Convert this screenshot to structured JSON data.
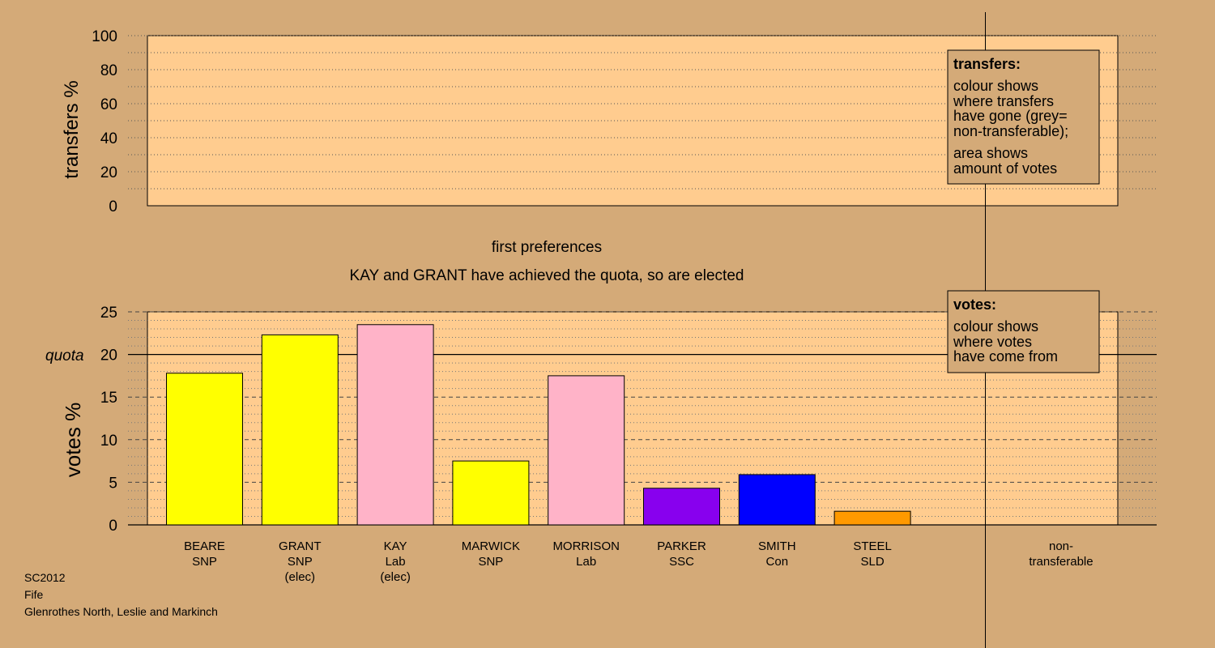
{
  "chart_data": [
    {
      "type": "bar",
      "panel": "transfers",
      "ylabel": "transfers %",
      "ylim": [
        0,
        100
      ],
      "yticks": [
        0,
        20,
        40,
        60,
        80,
        100
      ],
      "values": [],
      "legend": {
        "title": "transfers:",
        "lines": [
          "colour shows",
          "where transfers",
          "have gone (grey=",
          "non-transferable);"
        ],
        "lines2": [
          "area shows",
          "amount of votes"
        ]
      }
    },
    {
      "type": "bar",
      "panel": "votes",
      "title": "first preferences",
      "subtitle": "KAY and GRANT have achieved the quota, so are elected",
      "ylabel": "votes %",
      "ylim": [
        0,
        25
      ],
      "yticks": [
        0,
        5,
        10,
        15,
        20,
        25
      ],
      "quota": 20,
      "quota_label": "quota",
      "categories": [
        {
          "name": "BEARE",
          "party": "SNP",
          "status": ""
        },
        {
          "name": "GRANT",
          "party": "SNP",
          "status": "(elec)"
        },
        {
          "name": "KAY",
          "party": "Lab",
          "status": "(elec)"
        },
        {
          "name": "MARWICK",
          "party": "SNP",
          "status": ""
        },
        {
          "name": "MORRISON",
          "party": "Lab",
          "status": ""
        },
        {
          "name": "PARKER",
          "party": "SSC",
          "status": ""
        },
        {
          "name": "SMITH",
          "party": "Con",
          "status": ""
        },
        {
          "name": "STEEL",
          "party": "SLD",
          "status": ""
        }
      ],
      "values": [
        17.8,
        22.3,
        23.5,
        7.5,
        17.5,
        4.3,
        5.9,
        1.6
      ],
      "colors": [
        "#ffff00",
        "#ffff00",
        "#ffb3c8",
        "#ffff00",
        "#ffb3c8",
        "#8800ee",
        "#0000ff",
        "#ff9900"
      ],
      "non_transferable": {
        "line1": "non-",
        "line2": "transferable",
        "value": 0
      },
      "legend": {
        "title": "votes:",
        "lines": [
          "colour shows",
          "where votes",
          "have come from"
        ]
      }
    }
  ],
  "footer": {
    "line1": "SC2012",
    "line2": "Fife",
    "line3": "Glenrothes North, Leslie and Markinch"
  }
}
